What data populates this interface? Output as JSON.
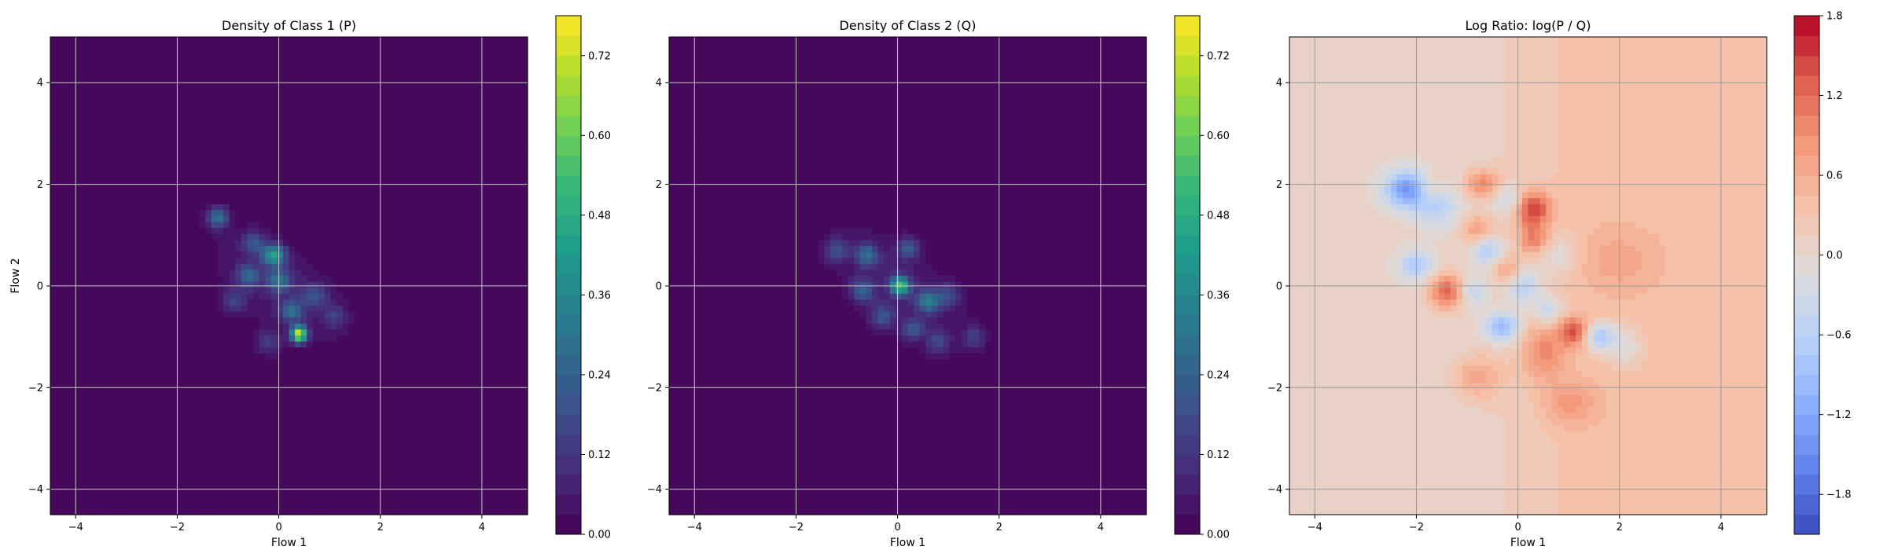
{
  "chart_data": [
    {
      "type": "heatmap",
      "title": "Density of Class 1 (P)",
      "xlabel": "Flow 1",
      "ylabel": "Flow 2",
      "xlim": [
        -4.5,
        4.9
      ],
      "ylim": [
        -4.5,
        4.9
      ],
      "xticks": [
        -4,
        -2,
        0,
        2,
        4
      ],
      "yticks": [
        -4,
        -2,
        0,
        2,
        4
      ],
      "grid": true,
      "colormap": "viridis",
      "colorbar": {
        "min": 0.0,
        "max": 0.78,
        "ticks": [
          "0.00",
          "0.12",
          "0.24",
          "0.36",
          "0.48",
          "0.60",
          "0.72"
        ],
        "levels": 26
      },
      "blobs": [
        {
          "x": 0.0,
          "y": 0.0,
          "sx": 1.15,
          "sy": 0.55,
          "rot": -38,
          "peak": 0.07
        },
        {
          "x": -1.2,
          "y": 1.35,
          "sx": 0.14,
          "sy": 0.14,
          "rot": 0,
          "peak": 0.28
        },
        {
          "x": -0.1,
          "y": 0.6,
          "sx": 0.16,
          "sy": 0.14,
          "rot": 0,
          "peak": 0.42
        },
        {
          "x": -0.6,
          "y": 0.2,
          "sx": 0.15,
          "sy": 0.15,
          "rot": 0,
          "peak": 0.22
        },
        {
          "x": 0.0,
          "y": 0.1,
          "sx": 0.16,
          "sy": 0.15,
          "rot": 0,
          "peak": 0.26
        },
        {
          "x": 0.25,
          "y": -0.5,
          "sx": 0.15,
          "sy": 0.15,
          "rot": 0,
          "peak": 0.24
        },
        {
          "x": 0.4,
          "y": -0.95,
          "sx": 0.11,
          "sy": 0.11,
          "rot": 0,
          "peak": 0.7
        },
        {
          "x": -0.5,
          "y": 0.85,
          "sx": 0.15,
          "sy": 0.15,
          "rot": 0,
          "peak": 0.18
        },
        {
          "x": 0.7,
          "y": -0.2,
          "sx": 0.18,
          "sy": 0.16,
          "rot": 0,
          "peak": 0.16
        },
        {
          "x": -0.9,
          "y": -0.3,
          "sx": 0.17,
          "sy": 0.17,
          "rot": 0,
          "peak": 0.14
        },
        {
          "x": 1.1,
          "y": -0.6,
          "sx": 0.16,
          "sy": 0.16,
          "rot": 0,
          "peak": 0.12
        },
        {
          "x": -0.2,
          "y": -1.1,
          "sx": 0.17,
          "sy": 0.17,
          "rot": 0,
          "peak": 0.12
        }
      ]
    },
    {
      "type": "heatmap",
      "title": "Density of Class 2 (Q)",
      "xlabel": "Flow 1",
      "ylabel": "",
      "xlim": [
        -4.5,
        4.9
      ],
      "ylim": [
        -4.5,
        4.9
      ],
      "xticks": [
        -4,
        -2,
        0,
        2,
        4
      ],
      "yticks": [
        -4,
        -2,
        0,
        2,
        4
      ],
      "grid": true,
      "colormap": "viridis",
      "colorbar": {
        "min": 0.0,
        "max": 0.78,
        "ticks": [
          "0.00",
          "0.12",
          "0.24",
          "0.36",
          "0.48",
          "0.60",
          "0.72"
        ],
        "levels": 26
      },
      "blobs": [
        {
          "x": 0.0,
          "y": 0.0,
          "sx": 1.2,
          "sy": 0.55,
          "rot": -38,
          "peak": 0.07
        },
        {
          "x": 0.05,
          "y": 0.0,
          "sx": 0.13,
          "sy": 0.13,
          "rot": 0,
          "peak": 0.5
        },
        {
          "x": -0.6,
          "y": 0.6,
          "sx": 0.15,
          "sy": 0.15,
          "rot": 0,
          "peak": 0.24
        },
        {
          "x": 0.6,
          "y": -0.3,
          "sx": 0.15,
          "sy": 0.15,
          "rot": 0,
          "peak": 0.3
        },
        {
          "x": -1.2,
          "y": 0.7,
          "sx": 0.16,
          "sy": 0.16,
          "rot": 0,
          "peak": 0.16
        },
        {
          "x": 0.2,
          "y": 0.75,
          "sx": 0.15,
          "sy": 0.15,
          "rot": 0,
          "peak": 0.2
        },
        {
          "x": -0.3,
          "y": -0.6,
          "sx": 0.16,
          "sy": 0.16,
          "rot": 0,
          "peak": 0.18
        },
        {
          "x": 1.0,
          "y": -0.2,
          "sx": 0.16,
          "sy": 0.16,
          "rot": 0,
          "peak": 0.16
        },
        {
          "x": -0.7,
          "y": -0.1,
          "sx": 0.16,
          "sy": 0.16,
          "rot": 0,
          "peak": 0.2
        },
        {
          "x": 0.8,
          "y": -1.1,
          "sx": 0.16,
          "sy": 0.16,
          "rot": 0,
          "peak": 0.14
        },
        {
          "x": 1.5,
          "y": -1.0,
          "sx": 0.16,
          "sy": 0.16,
          "rot": 0,
          "peak": 0.12
        },
        {
          "x": 0.3,
          "y": -0.85,
          "sx": 0.15,
          "sy": 0.15,
          "rot": 0,
          "peak": 0.18
        }
      ]
    },
    {
      "type": "heatmap",
      "title": "Log Ratio: log(P / Q)",
      "xlabel": "Flow 1",
      "ylabel": "",
      "xlim": [
        -4.5,
        4.9
      ],
      "ylim": [
        -4.5,
        4.9
      ],
      "xticks": [
        -4,
        -2,
        0,
        2,
        4
      ],
      "yticks": [
        -4,
        -2,
        0,
        2,
        4
      ],
      "grid": true,
      "colormap": "coolwarm",
      "colorbar": {
        "min": -2.1,
        "max": 1.8,
        "ticks": [
          "−1.8",
          "−1.2",
          "−0.6",
          "0.0",
          "0.6",
          "1.2",
          "1.8"
        ],
        "levels": 26
      },
      "background": {
        "left": 0.05,
        "right": 0.4
      },
      "blobs": [
        {
          "x": -2.2,
          "y": 1.9,
          "sx": 0.3,
          "sy": 0.25,
          "rot": 0,
          "peak": -1.4
        },
        {
          "x": -1.6,
          "y": 1.6,
          "sx": 0.3,
          "sy": 0.3,
          "rot": 0,
          "peak": -0.7
        },
        {
          "x": -2.0,
          "y": 0.4,
          "sx": 0.25,
          "sy": 0.2,
          "rot": 0,
          "peak": -0.8
        },
        {
          "x": -0.6,
          "y": 0.7,
          "sx": 0.2,
          "sy": 0.2,
          "rot": 0,
          "peak": -0.8
        },
        {
          "x": -0.2,
          "y": 1.7,
          "sx": 0.2,
          "sy": 0.2,
          "rot": 0,
          "peak": -0.6
        },
        {
          "x": -0.9,
          "y": -0.1,
          "sx": 0.2,
          "sy": 0.2,
          "rot": 0,
          "peak": -0.6
        },
        {
          "x": 0.1,
          "y": 0.0,
          "sx": 0.25,
          "sy": 0.25,
          "rot": 0,
          "peak": -0.8
        },
        {
          "x": -0.3,
          "y": -0.8,
          "sx": 0.25,
          "sy": 0.2,
          "rot": 0,
          "peak": -1.1
        },
        {
          "x": 0.6,
          "y": -0.5,
          "sx": 0.2,
          "sy": 0.2,
          "rot": 0,
          "peak": -0.7
        },
        {
          "x": 1.6,
          "y": -1.0,
          "sx": 0.22,
          "sy": 0.2,
          "rot": 0,
          "peak": -1.1
        },
        {
          "x": 2.1,
          "y": -1.2,
          "sx": 0.25,
          "sy": 0.3,
          "rot": 0,
          "peak": -0.5
        },
        {
          "x": 0.8,
          "y": 0.6,
          "sx": 0.25,
          "sy": 0.25,
          "rot": 0,
          "peak": -0.4
        },
        {
          "x": 0.3,
          "y": 1.5,
          "sx": 0.25,
          "sy": 0.25,
          "rot": 0,
          "peak": 1.3
        },
        {
          "x": -0.7,
          "y": 2.0,
          "sx": 0.25,
          "sy": 0.2,
          "rot": 0,
          "peak": 0.9
        },
        {
          "x": -1.7,
          "y": 1.9,
          "sx": 0.2,
          "sy": 0.2,
          "rot": 0,
          "peak": 0.5
        },
        {
          "x": -1.4,
          "y": -0.1,
          "sx": 0.25,
          "sy": 0.25,
          "rot": 0,
          "peak": 1.2
        },
        {
          "x": -0.8,
          "y": 1.1,
          "sx": 0.22,
          "sy": 0.2,
          "rot": 0,
          "peak": 0.7
        },
        {
          "x": -0.2,
          "y": 0.3,
          "sx": 0.2,
          "sy": 0.2,
          "rot": 0,
          "peak": 0.6
        },
        {
          "x": 0.3,
          "y": 0.9,
          "sx": 0.2,
          "sy": 0.2,
          "rot": 0,
          "peak": 0.8
        },
        {
          "x": 1.1,
          "y": -0.9,
          "sx": 0.2,
          "sy": 0.2,
          "rot": 0,
          "peak": 1.1
        },
        {
          "x": 0.5,
          "y": -1.3,
          "sx": 0.3,
          "sy": 0.4,
          "rot": 0,
          "peak": 0.7
        },
        {
          "x": -0.8,
          "y": -1.8,
          "sx": 0.35,
          "sy": 0.3,
          "rot": 0,
          "peak": 0.6
        },
        {
          "x": 1.0,
          "y": -2.3,
          "sx": 0.35,
          "sy": 0.3,
          "rot": 0,
          "peak": 0.5
        },
        {
          "x": 2.0,
          "y": 0.5,
          "sx": 0.5,
          "sy": 0.4,
          "rot": 0,
          "peak": 0.3
        }
      ]
    }
  ]
}
